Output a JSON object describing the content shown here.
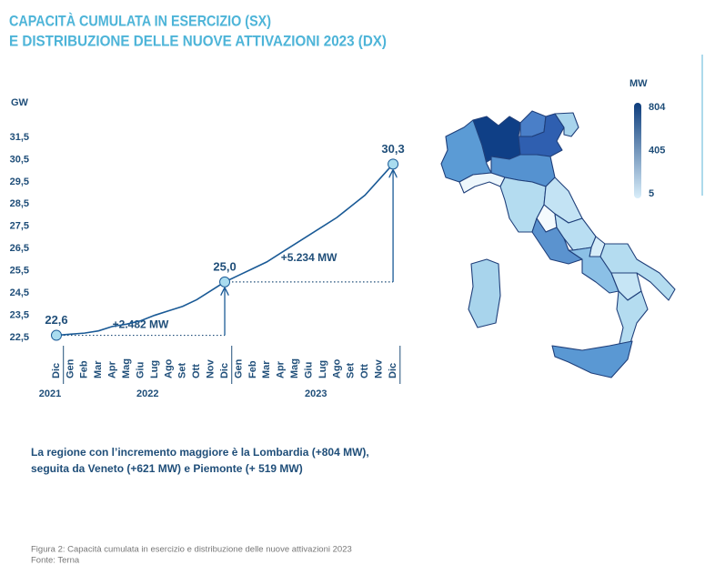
{
  "header": {
    "title_lines": [
      "CAPACITÀ CUMULATA IN ESERCIZIO (SX)",
      "E DISTRIBUZIONE DELLE NUOVE ATTIVAZIONI 2023 (DX)"
    ]
  },
  "chart_data": {
    "type": "line",
    "y_label": "GW",
    "categories": [
      "Dic",
      "Gen",
      "Feb",
      "Mar",
      "Apr",
      "Mag",
      "Giu",
      "Lug",
      "Ago",
      "Set",
      "Ott",
      "Nov",
      "Dic",
      "Gen",
      "Feb",
      "Mar",
      "Apr",
      "Mag",
      "Giu",
      "Lug",
      "Ago",
      "Set",
      "Ott",
      "Nov",
      "Dic"
    ],
    "years": [
      {
        "label": "2021",
        "start": 0,
        "end": 0
      },
      {
        "label": "2022",
        "start": 1,
        "end": 12
      },
      {
        "label": "2023",
        "start": 13,
        "end": 24
      }
    ],
    "series": [
      {
        "name": "Capacità cumulata",
        "color": "#1a5a96",
        "values": [
          22.6,
          22.65,
          22.7,
          22.8,
          23.0,
          23.1,
          23.25,
          23.5,
          23.7,
          23.9,
          24.2,
          24.6,
          25.0,
          25.3,
          25.6,
          25.9,
          26.3,
          26.7,
          27.1,
          27.5,
          27.9,
          28.4,
          28.9,
          29.6,
          30.3
        ],
        "value_labels": [
          "22,6",
          null,
          null,
          null,
          null,
          null,
          null,
          null,
          null,
          null,
          null,
          null,
          "25,0",
          null,
          null,
          null,
          null,
          null,
          null,
          null,
          null,
          null,
          null,
          null,
          "30,3"
        ]
      }
    ],
    "ylim": [
      22.5,
      31.5
    ],
    "yticks": [
      {
        "value": 22.5,
        "label": "22,5"
      },
      {
        "value": 23.5,
        "label": "23,5"
      },
      {
        "value": 24.5,
        "label": "24,5"
      },
      {
        "value": 25.5,
        "label": "25,5"
      },
      {
        "value": 26.5,
        "label": "26,5"
      },
      {
        "value": 27.5,
        "label": "27,5"
      },
      {
        "value": 28.5,
        "label": "28,5"
      },
      {
        "value": 29.5,
        "label": "29,5"
      },
      {
        "value": 30.5,
        "label": "30,5"
      },
      {
        "value": 31.5,
        "label": "31,5"
      }
    ],
    "annotations": [
      {
        "text": "+2.482 MW",
        "from": 0,
        "to": 12
      },
      {
        "text": "+5.234 MW",
        "from": 12,
        "to": 24
      }
    ],
    "marker_color": "#a9dcef"
  },
  "map": {
    "legend_title": "MW",
    "min": 5,
    "max": 804,
    "ticks": [
      5,
      405,
      804
    ],
    "colors": [
      "#d9eefa",
      "#0d3d7c"
    ]
  },
  "note_lines": [
    "La regione con l’incremento maggiore è la Lombardia (+804 MW),",
    "seguita da Veneto (+621 MW) e Piemonte (+ 519 MW)"
  ],
  "caption_lines": [
    "Figura 2: Capacità cumulata in esercizio e distribuzione delle nuove attivazioni 2023",
    "Fonte: Terna"
  ]
}
